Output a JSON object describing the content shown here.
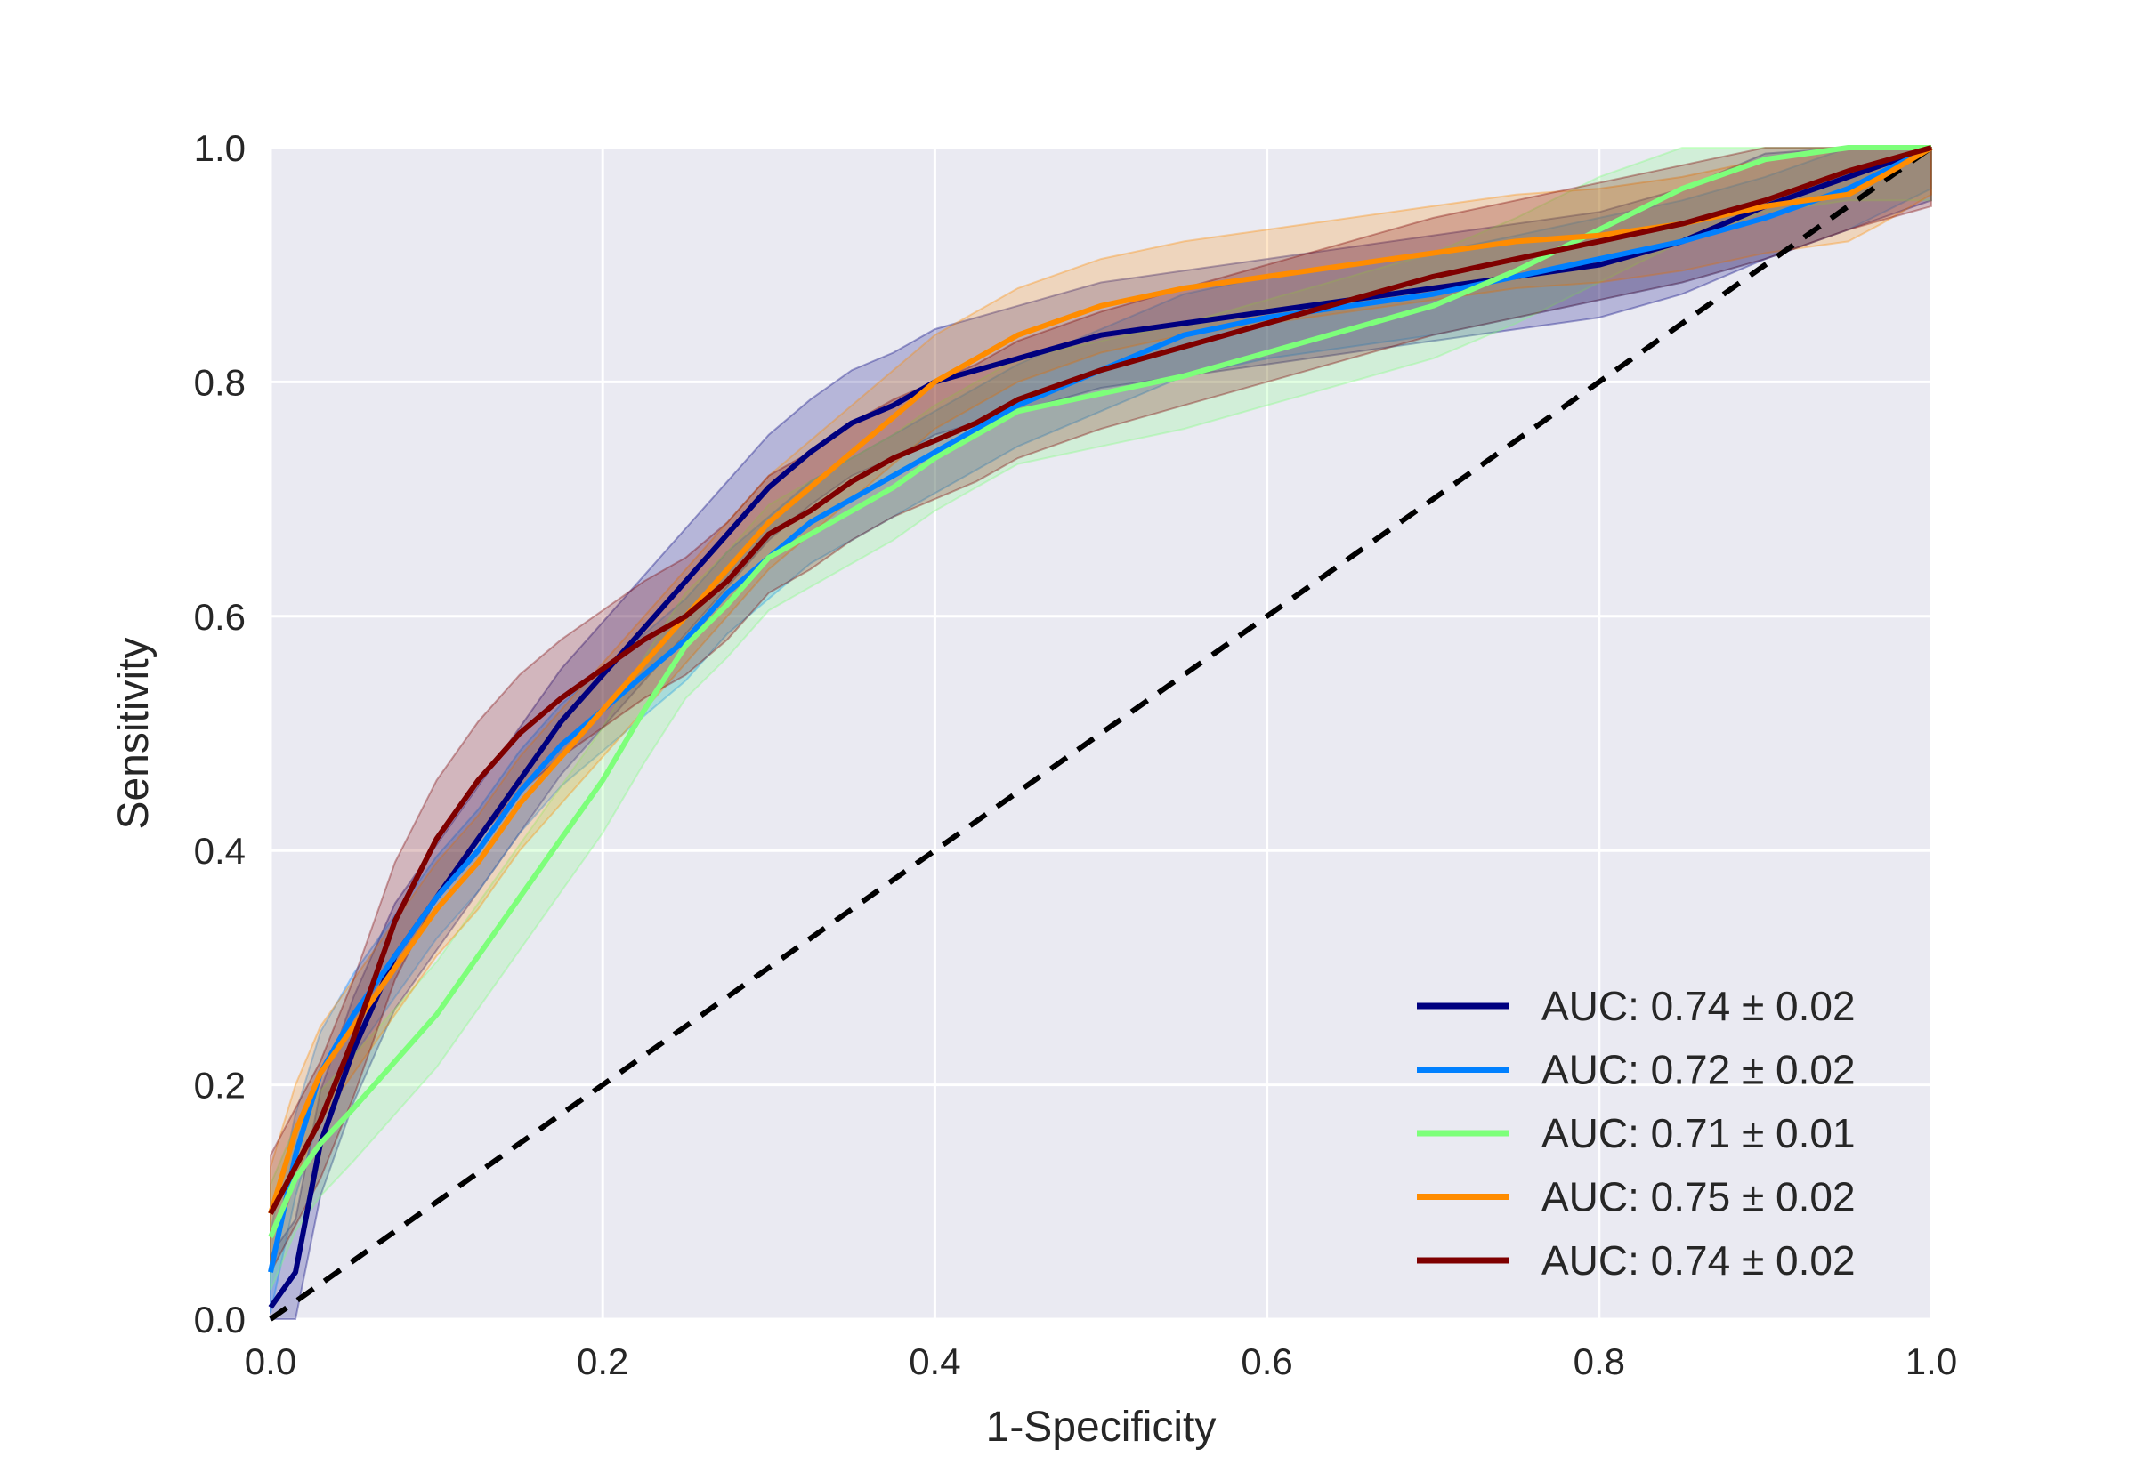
{
  "chart_data": {
    "type": "line",
    "title": "",
    "xlabel": "1-Specificity",
    "ylabel": "Sensitivity",
    "xlim": [
      0.0,
      1.0
    ],
    "ylim": [
      0.0,
      1.0
    ],
    "xticks": [
      "0.0",
      "0.2",
      "0.4",
      "0.6",
      "0.8",
      "1.0"
    ],
    "yticks": [
      "0.0",
      "0.2",
      "0.4",
      "0.6",
      "0.8",
      "1.0"
    ],
    "grid": true,
    "legend_position": "lower-right",
    "background_color": "#eaeaf2",
    "grid_color": "#ffffff",
    "band_opacity": 0.22,
    "series": [
      {
        "name": "AUC: 0.74 ± 0.02",
        "color": "#00007f",
        "x": [
          0.0,
          0.015,
          0.03,
          0.05,
          0.075,
          0.1,
          0.125,
          0.15,
          0.175,
          0.2,
          0.225,
          0.25,
          0.275,
          0.3,
          0.325,
          0.35,
          0.375,
          0.4,
          0.425,
          0.45,
          0.5,
          0.55,
          0.6,
          0.65,
          0.7,
          0.75,
          0.8,
          0.85,
          0.9,
          0.95,
          1.0
        ],
        "y": [
          0.01,
          0.04,
          0.15,
          0.23,
          0.31,
          0.36,
          0.41,
          0.46,
          0.51,
          0.55,
          0.59,
          0.63,
          0.67,
          0.71,
          0.74,
          0.765,
          0.78,
          0.8,
          0.81,
          0.82,
          0.84,
          0.85,
          0.86,
          0.87,
          0.88,
          0.89,
          0.9,
          0.92,
          0.95,
          0.975,
          1.0
        ],
        "band": 0.045
      },
      {
        "name": "AUC: 0.72 ± 0.02",
        "color": "#0080ff",
        "x": [
          0.0,
          0.015,
          0.03,
          0.05,
          0.075,
          0.1,
          0.125,
          0.15,
          0.175,
          0.2,
          0.225,
          0.25,
          0.275,
          0.3,
          0.325,
          0.35,
          0.375,
          0.4,
          0.425,
          0.45,
          0.5,
          0.55,
          0.6,
          0.65,
          0.7,
          0.75,
          0.8,
          0.85,
          0.9,
          0.95,
          1.0
        ],
        "y": [
          0.04,
          0.14,
          0.21,
          0.26,
          0.31,
          0.36,
          0.4,
          0.45,
          0.49,
          0.52,
          0.55,
          0.58,
          0.62,
          0.65,
          0.68,
          0.7,
          0.72,
          0.74,
          0.76,
          0.78,
          0.81,
          0.84,
          0.855,
          0.865,
          0.875,
          0.89,
          0.905,
          0.92,
          0.94,
          0.965,
          1.0
        ],
        "band": 0.035
      },
      {
        "name": "AUC: 0.71 ± 0.01",
        "color": "#7dff7a",
        "x": [
          0.0,
          0.015,
          0.03,
          0.05,
          0.075,
          0.1,
          0.125,
          0.15,
          0.175,
          0.2,
          0.225,
          0.25,
          0.275,
          0.3,
          0.325,
          0.35,
          0.375,
          0.4,
          0.425,
          0.45,
          0.5,
          0.55,
          0.6,
          0.65,
          0.7,
          0.75,
          0.8,
          0.85,
          0.9,
          0.95,
          1.0
        ],
        "y": [
          0.07,
          0.12,
          0.15,
          0.18,
          0.22,
          0.26,
          0.31,
          0.36,
          0.41,
          0.46,
          0.52,
          0.575,
          0.61,
          0.65,
          0.67,
          0.69,
          0.71,
          0.735,
          0.755,
          0.775,
          0.79,
          0.805,
          0.825,
          0.845,
          0.865,
          0.895,
          0.93,
          0.965,
          0.99,
          1.0,
          1.0
        ],
        "band": 0.045
      },
      {
        "name": "AUC: 0.75 ± 0.02",
        "color": "#ff8c00",
        "x": [
          0.0,
          0.015,
          0.03,
          0.05,
          0.075,
          0.1,
          0.125,
          0.15,
          0.175,
          0.2,
          0.225,
          0.25,
          0.275,
          0.3,
          0.325,
          0.35,
          0.375,
          0.4,
          0.425,
          0.45,
          0.5,
          0.55,
          0.6,
          0.65,
          0.7,
          0.75,
          0.8,
          0.85,
          0.9,
          0.95,
          0.97,
          1.0
        ],
        "y": [
          0.09,
          0.16,
          0.21,
          0.25,
          0.3,
          0.35,
          0.39,
          0.44,
          0.48,
          0.52,
          0.56,
          0.6,
          0.64,
          0.68,
          0.71,
          0.74,
          0.77,
          0.8,
          0.82,
          0.84,
          0.865,
          0.88,
          0.89,
          0.9,
          0.91,
          0.92,
          0.925,
          0.935,
          0.95,
          0.96,
          0.975,
          1.0
        ],
        "band": 0.04
      },
      {
        "name": "AUC: 0.74 ± 0.02",
        "color": "#7f0000",
        "x": [
          0.0,
          0.015,
          0.03,
          0.05,
          0.075,
          0.1,
          0.125,
          0.15,
          0.175,
          0.2,
          0.225,
          0.25,
          0.275,
          0.3,
          0.325,
          0.35,
          0.375,
          0.4,
          0.425,
          0.45,
          0.5,
          0.55,
          0.6,
          0.65,
          0.7,
          0.75,
          0.8,
          0.85,
          0.9,
          0.95,
          1.0
        ],
        "y": [
          0.09,
          0.13,
          0.17,
          0.24,
          0.34,
          0.41,
          0.46,
          0.5,
          0.53,
          0.555,
          0.58,
          0.6,
          0.63,
          0.67,
          0.69,
          0.715,
          0.735,
          0.75,
          0.765,
          0.785,
          0.81,
          0.83,
          0.85,
          0.87,
          0.89,
          0.905,
          0.92,
          0.935,
          0.955,
          0.98,
          1.0
        ],
        "band": 0.05
      }
    ],
    "reference_line": {
      "x": [
        0.0,
        1.0
      ],
      "y": [
        0.0,
        1.0
      ],
      "color": "#000000",
      "style": "dashed"
    }
  }
}
